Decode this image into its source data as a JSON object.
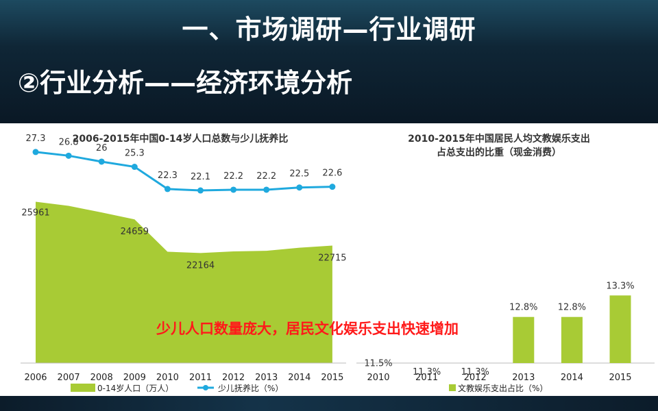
{
  "header": {
    "title": "一、市场调研—行业调研",
    "subtitle": "②行业分析——经济环境分析"
  },
  "annotation": "少儿人口数量庞大，居民文化娱乐支出快速增加",
  "colors": {
    "green": "#a8cb35",
    "line": "#1fa9de",
    "header_bg": "#0f2636"
  },
  "chart_data": [
    {
      "type": "area+line",
      "title": "2006-2015年中国0-14岁人口总数与少儿抚养比",
      "categories": [
        "2006",
        "2007",
        "2008",
        "2009",
        "2010",
        "2011",
        "2012",
        "2013",
        "2014",
        "2015"
      ],
      "series": [
        {
          "name": "0-14岁人口（万人）",
          "type": "area",
          "values": [
            25961,
            25660,
            25170,
            24659,
            22259,
            22164,
            22287,
            22329,
            22558,
            22715
          ],
          "labels": {
            "0": "25961",
            "3": "24659",
            "5": "22164",
            "9": "22715"
          }
        },
        {
          "name": "少儿抚养比（%）",
          "type": "line",
          "values": [
            27.3,
            26.8,
            26,
            25.3,
            22.3,
            22.1,
            22.2,
            22.2,
            22.5,
            22.6
          ]
        }
      ]
    },
    {
      "type": "bar",
      "title": "2010-2015年中国居民人均文教娱乐支出",
      "title_line2": "占总支出的比重（现金消费）",
      "categories": [
        "2010",
        "2011",
        "2012",
        "2013",
        "2014",
        "2015"
      ],
      "series": [
        {
          "name": "文教娱乐支出占比（%）",
          "values": [
            11.5,
            11.3,
            11.3,
            12.8,
            12.8,
            13.3
          ],
          "labels": [
            "11.5%",
            "11.3%",
            "11.3%",
            "12.8%",
            "12.8%",
            "13.3%"
          ]
        }
      ]
    }
  ]
}
